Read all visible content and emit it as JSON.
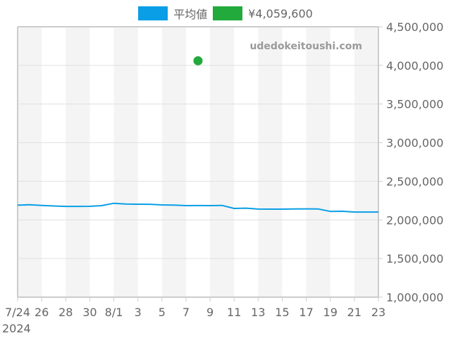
{
  "legend": {
    "items": [
      {
        "label": "平均値",
        "color": "#0a9ee6"
      },
      {
        "label": "¥4,059,600",
        "color": "#22aa3c"
      }
    ]
  },
  "watermark": "udedokeitoushi.com",
  "year_label": "2024",
  "chart_data": {
    "type": "line",
    "title": "",
    "xlabel": "",
    "ylabel": "",
    "ylim": [
      1000000,
      4500000
    ],
    "y_ticks": [
      "1,000,000",
      "1,500,000",
      "2,000,000",
      "2,500,000",
      "3,000,000",
      "3,500,000",
      "4,000,000",
      "4,500,000"
    ],
    "y_tick_values": [
      1000000,
      1500000,
      2000000,
      2500000,
      3000000,
      3500000,
      4000000,
      4500000
    ],
    "x_tick_labels": [
      "7/24",
      "26",
      "28",
      "30",
      "8/1",
      "3",
      "5",
      "7",
      "9",
      "11",
      "13",
      "15",
      "17",
      "19",
      "21",
      "23"
    ],
    "x_sublabel": "2024",
    "grid": true,
    "legend_position": "top",
    "x": [
      "7/24",
      "7/25",
      "7/26",
      "7/27",
      "7/28",
      "7/29",
      "7/30",
      "7/31",
      "8/1",
      "8/2",
      "8/3",
      "8/4",
      "8/5",
      "8/6",
      "8/7",
      "8/8",
      "8/9",
      "8/10",
      "8/11",
      "8/12",
      "8/13",
      "8/14",
      "8/15",
      "8/16",
      "8/17",
      "8/18",
      "8/19",
      "8/20",
      "8/21",
      "8/22",
      "8/23"
    ],
    "series": [
      {
        "name": "平均値",
        "type": "line",
        "color": "#0a9ee6",
        "values": [
          2190000,
          2197000,
          2188000,
          2180000,
          2175000,
          2175000,
          2176000,
          2185000,
          2215000,
          2205000,
          2203000,
          2202000,
          2194000,
          2192000,
          2185000,
          2186000,
          2185000,
          2188000,
          2148000,
          2152000,
          2140000,
          2139000,
          2139000,
          2142000,
          2143000,
          2141000,
          2110000,
          2112000,
          2102000,
          2102000,
          2102000
        ]
      },
      {
        "name": "¥4,059,600",
        "type": "scatter",
        "color": "#22aa3c",
        "points": [
          {
            "x": "8/8",
            "y": 4059600
          }
        ]
      }
    ]
  }
}
